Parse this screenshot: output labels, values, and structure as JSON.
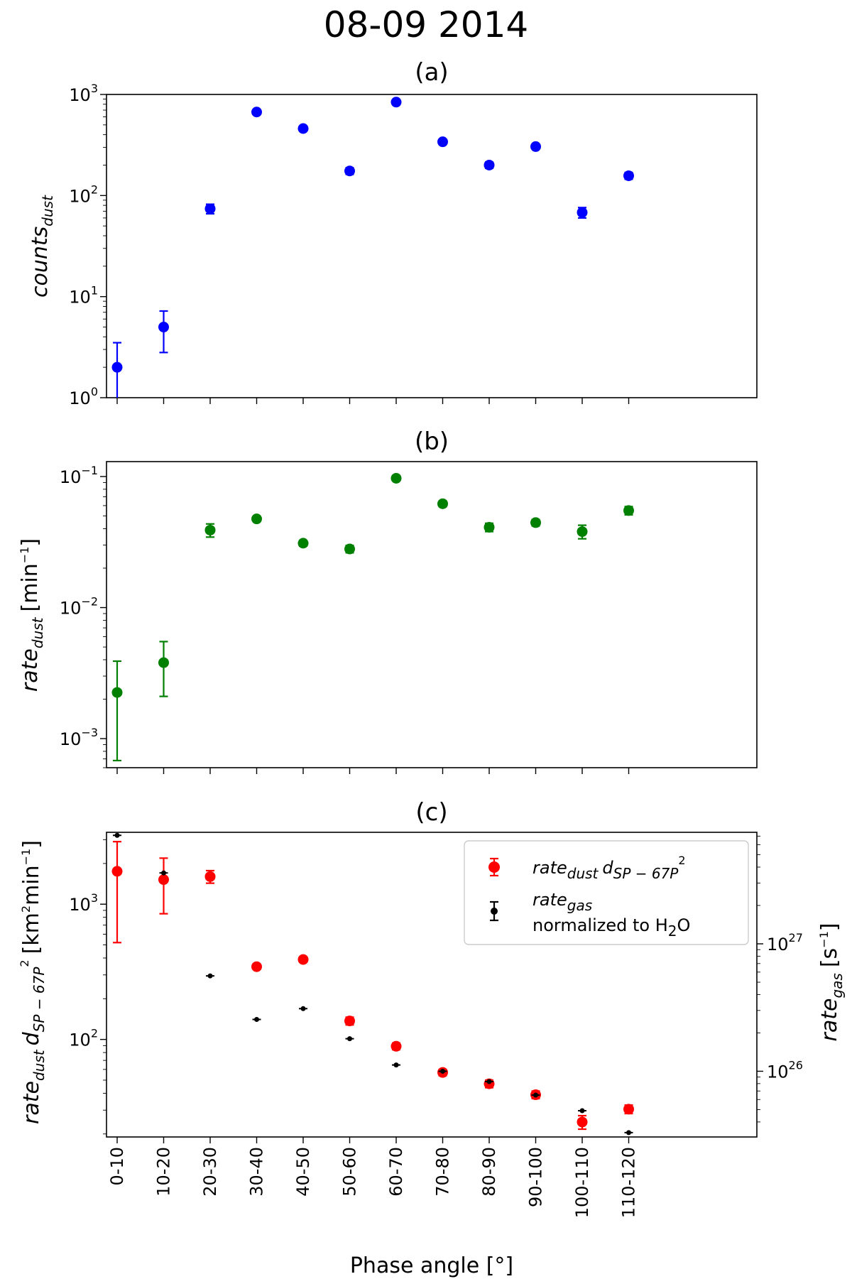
{
  "figure": {
    "title": "08-09 2014",
    "xlabel": "Phase angle [°]"
  },
  "chart_data": [
    {
      "type": "scatter",
      "panel_label": "(a)",
      "yscale": "log",
      "ylim": [
        1,
        1000
      ],
      "ylabel_main": "counts",
      "ylabel_sub": "dust",
      "ytick_base": "10",
      "yticks": [
        {
          "value": 1,
          "exp": "0"
        },
        {
          "value": 10,
          "exp": "1"
        },
        {
          "value": 100,
          "exp": "2"
        },
        {
          "value": 1000,
          "exp": "3"
        }
      ],
      "categories": [
        "0-10",
        "10-20",
        "20-30",
        "30-40",
        "40-50",
        "50-60",
        "60-70",
        "70-80",
        "80-90",
        "90-100",
        "100-110",
        "110-120"
      ],
      "series": [
        {
          "name": "counts_dust",
          "color": "#0000ff",
          "values": [
            2,
            5,
            74,
            670,
            460,
            175,
            840,
            340,
            200,
            305,
            68,
            157
          ],
          "err_low": [
            1.95,
            2.2,
            8,
            26,
            21,
            13,
            29,
            18,
            14,
            17,
            8,
            12
          ],
          "err_high": [
            1.5,
            2.2,
            8,
            26,
            21,
            13,
            29,
            18,
            14,
            17,
            8,
            12
          ]
        }
      ]
    },
    {
      "type": "scatter",
      "panel_label": "(b)",
      "yscale": "log",
      "ylim": [
        0.0006,
        0.13
      ],
      "ylabel_main": "rate",
      "ylabel_sub": "dust",
      "ylabel_unit": "[min",
      "ylabel_unit_exp": "−1",
      "ylabel_unit_close": "]",
      "ytick_base": "10",
      "yticks": [
        {
          "value": 0.001,
          "exp": "−3"
        },
        {
          "value": 0.01,
          "exp": "−2"
        },
        {
          "value": 0.1,
          "exp": "−1"
        }
      ],
      "categories": [
        "0-10",
        "10-20",
        "20-30",
        "30-40",
        "40-50",
        "50-60",
        "60-70",
        "70-80",
        "80-90",
        "90-100",
        "100-110",
        "110-120"
      ],
      "series": [
        {
          "name": "rate_dust",
          "color": "#008000",
          "values": [
            0.00225,
            0.0038,
            0.039,
            0.0475,
            0.031,
            0.028,
            0.097,
            0.062,
            0.041,
            0.0445,
            0.038,
            0.055
          ],
          "err_low": [
            0.00157,
            0.0017,
            0.0045,
            0.0018,
            0.0015,
            0.0018,
            0.0035,
            0.003,
            0.003,
            0.0025,
            0.0045,
            0.004
          ],
          "err_high": [
            0.00165,
            0.0017,
            0.0045,
            0.0018,
            0.0015,
            0.0018,
            0.0035,
            0.003,
            0.003,
            0.0025,
            0.0045,
            0.004
          ]
        }
      ]
    },
    {
      "type": "scatter",
      "panel_label": "(c)",
      "yscale": "log",
      "ylim": [
        19,
        3400
      ],
      "ylabel_main": "rate",
      "ylabel_sub": "dust",
      "ylabel_d": "d",
      "ylabel_d_sub": "SP − 67P",
      "ylabel_d_sup": "2",
      "ylabel_unit": "[km",
      "ylabel_unit_sup": "2",
      "ylabel_unit_mid": "min",
      "ylabel_unit_exp": "−1",
      "ylabel_unit_close": "]",
      "ytick_base": "10",
      "yticks": [
        {
          "value": 100,
          "exp": "2"
        },
        {
          "value": 1000,
          "exp": "3"
        }
      ],
      "y2scale": "log",
      "y2lim": [
        3.05e+25,
        7.5e+27
      ],
      "y2label_main": "rate",
      "y2label_sub": "gas",
      "y2label_unit": "[s",
      "y2label_unit_exp": "−1",
      "y2label_unit_close": "]",
      "y2ticks": [
        {
          "value": 1e+26,
          "exp": "26"
        },
        {
          "value": 1e+27,
          "exp": "27"
        }
      ],
      "categories": [
        "0-10",
        "10-20",
        "20-30",
        "30-40",
        "40-50",
        "50-60",
        "60-70",
        "70-80",
        "80-90",
        "90-100",
        "100-110",
        "110-120"
      ],
      "series": [
        {
          "name": "rate_dust d_SP-67P^2",
          "color": "#ff0000",
          "axis": "left",
          "values": [
            1750,
            1520,
            1600,
            345,
            390,
            137,
            89,
            57,
            47,
            39,
            24.5,
            30.5
          ],
          "err_low": [
            1230,
            670,
            170,
            14,
            14,
            9,
            5,
            3,
            3,
            2.5,
            2.8,
            2.2
          ],
          "err_high": [
            1150,
            670,
            170,
            14,
            14,
            9,
            5,
            3,
            3,
            2.5,
            2.8,
            2.2
          ]
        },
        {
          "name": "rate_gas normalized to H2O",
          "color": "#000000",
          "axis": "right",
          "values": [
            7.1e+27,
            3.6e+27,
            5.6e+26,
            2.55e+26,
            3.1e+26,
            1.8e+26,
            1.12e+26,
            1e+26,
            8.3e+25,
            6.5e+25,
            4.9e+25,
            3.3e+25
          ],
          "err_low": [
            0,
            0,
            0,
            0,
            0,
            0,
            0,
            0,
            0,
            0,
            0,
            0
          ],
          "err_high": [
            0,
            0,
            0,
            0,
            0,
            0,
            0,
            0,
            0,
            0,
            0,
            0
          ]
        }
      ],
      "legend": {
        "placement": "top-right",
        "entries": [
          {
            "label_main": "rate",
            "label_sub": "dust",
            "label_d": "d",
            "label_d_sub": "SP − 67P",
            "label_d_sup": "2",
            "color": "#ff0000"
          },
          {
            "label_main": "rate",
            "label_sub": "gas",
            "label_line2_pre": "normalized to H",
            "label_line2_sub": "2",
            "label_line2_post": "O",
            "color": "#000000"
          }
        ]
      }
    }
  ]
}
